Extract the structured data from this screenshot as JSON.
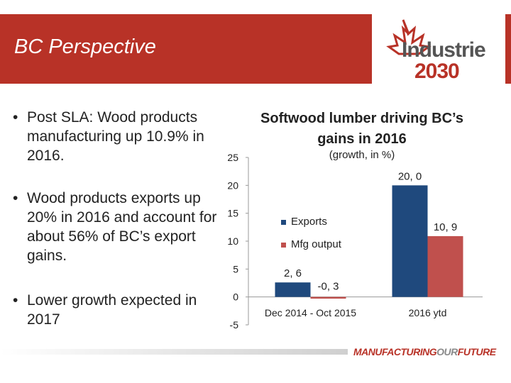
{
  "slide": {
    "title": "BC Perspective"
  },
  "logo": {
    "line1": "Industrie",
    "line2": "2030"
  },
  "bullets": [
    {
      "marker": "•",
      "text": "Post SLA: Wood products manufacturing up 10.9% in 2016."
    },
    {
      "marker": "•",
      "text": "Wood products exports up 20% in 2016 and account for about 56% of BC’s export gains."
    },
    {
      "marker": "•",
      "text": "Lower growth expected in 2017"
    }
  ],
  "footer": {
    "brand_part1": "MANUFACTURING",
    "brand_part2": "OUR",
    "brand_part3": "FUTURE"
  },
  "colors": {
    "header": "#b83227",
    "exports": "#1f497d",
    "mfg_output": "#c0504d"
  },
  "chart_data": {
    "type": "bar",
    "title": "Softwood lumber driving BC’s gains in 2016",
    "subtitle": "(growth, in %)",
    "categories": [
      "Dec 2014 - Oct 2015",
      "2016 ytd"
    ],
    "series": [
      {
        "name": "Exports",
        "values": [
          2.6,
          20.0
        ],
        "labels": [
          "2, 6",
          "20, 0"
        ]
      },
      {
        "name": "Mfg output",
        "values": [
          -0.3,
          10.9
        ],
        "labels": [
          "-0, 3",
          "10, 9"
        ]
      }
    ],
    "ylim": [
      -5,
      25
    ],
    "yticks": [
      -5,
      0,
      5,
      10,
      15,
      20,
      25
    ],
    "legend": "left, inside plot area"
  }
}
